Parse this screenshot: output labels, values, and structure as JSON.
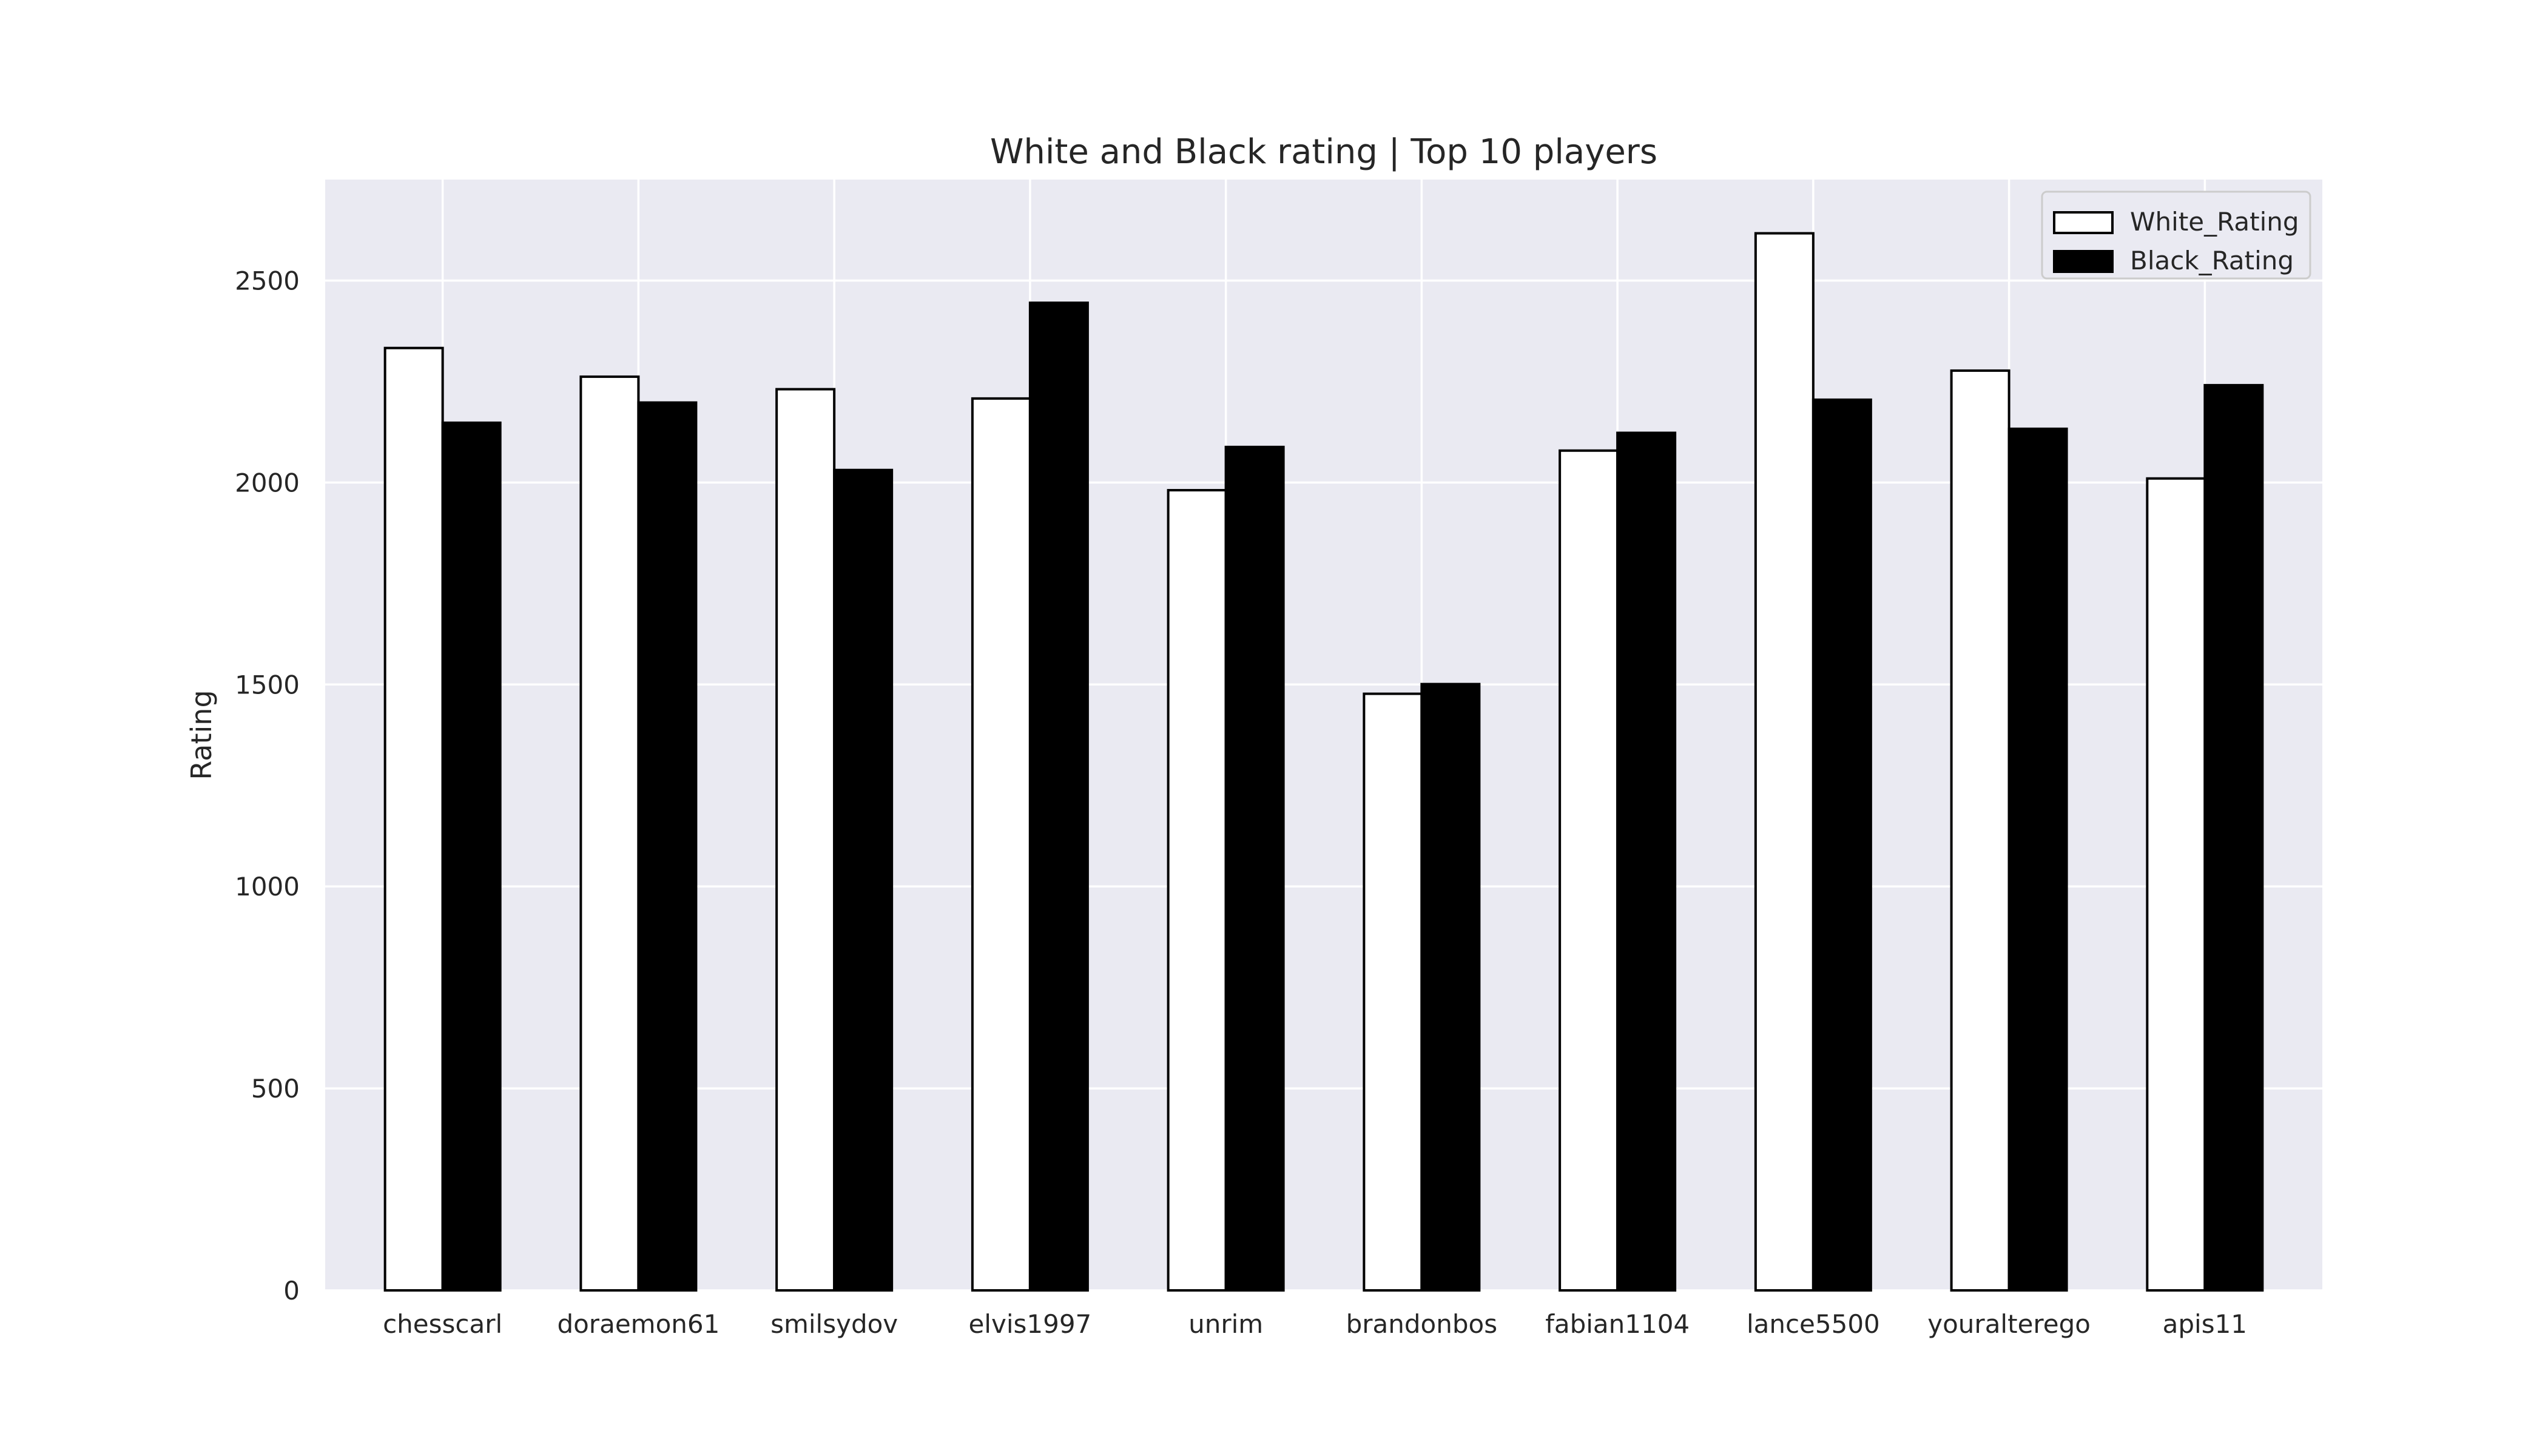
{
  "chart_data": {
    "type": "bar",
    "title": "White and Black rating | Top 10 players",
    "xlabel": "",
    "ylabel": "Rating",
    "categories": [
      "chesscarl",
      "doraemon61",
      "smilsydov",
      "elvis1997",
      "unrim",
      "brandonbos",
      "fabian1104",
      "lance5500",
      "youralterego",
      "apis11"
    ],
    "series": [
      {
        "name": "White_Rating",
        "color": "#ffffff",
        "values": [
          2333,
          2262,
          2231,
          2208,
          1981,
          1477,
          2079,
          2617,
          2277,
          2010
        ]
      },
      {
        "name": "Black_Rating",
        "color": "#000000",
        "values": [
          2148,
          2198,
          2031,
          2445,
          2088,
          1501,
          2123,
          2205,
          2133,
          2241
        ]
      }
    ],
    "ylim": [
      0,
      2750
    ],
    "yticks": [
      0,
      500,
      1000,
      1500,
      2000,
      2500
    ],
    "grid": true,
    "background": "#eaeaf2",
    "legend_position": "top-right"
  }
}
